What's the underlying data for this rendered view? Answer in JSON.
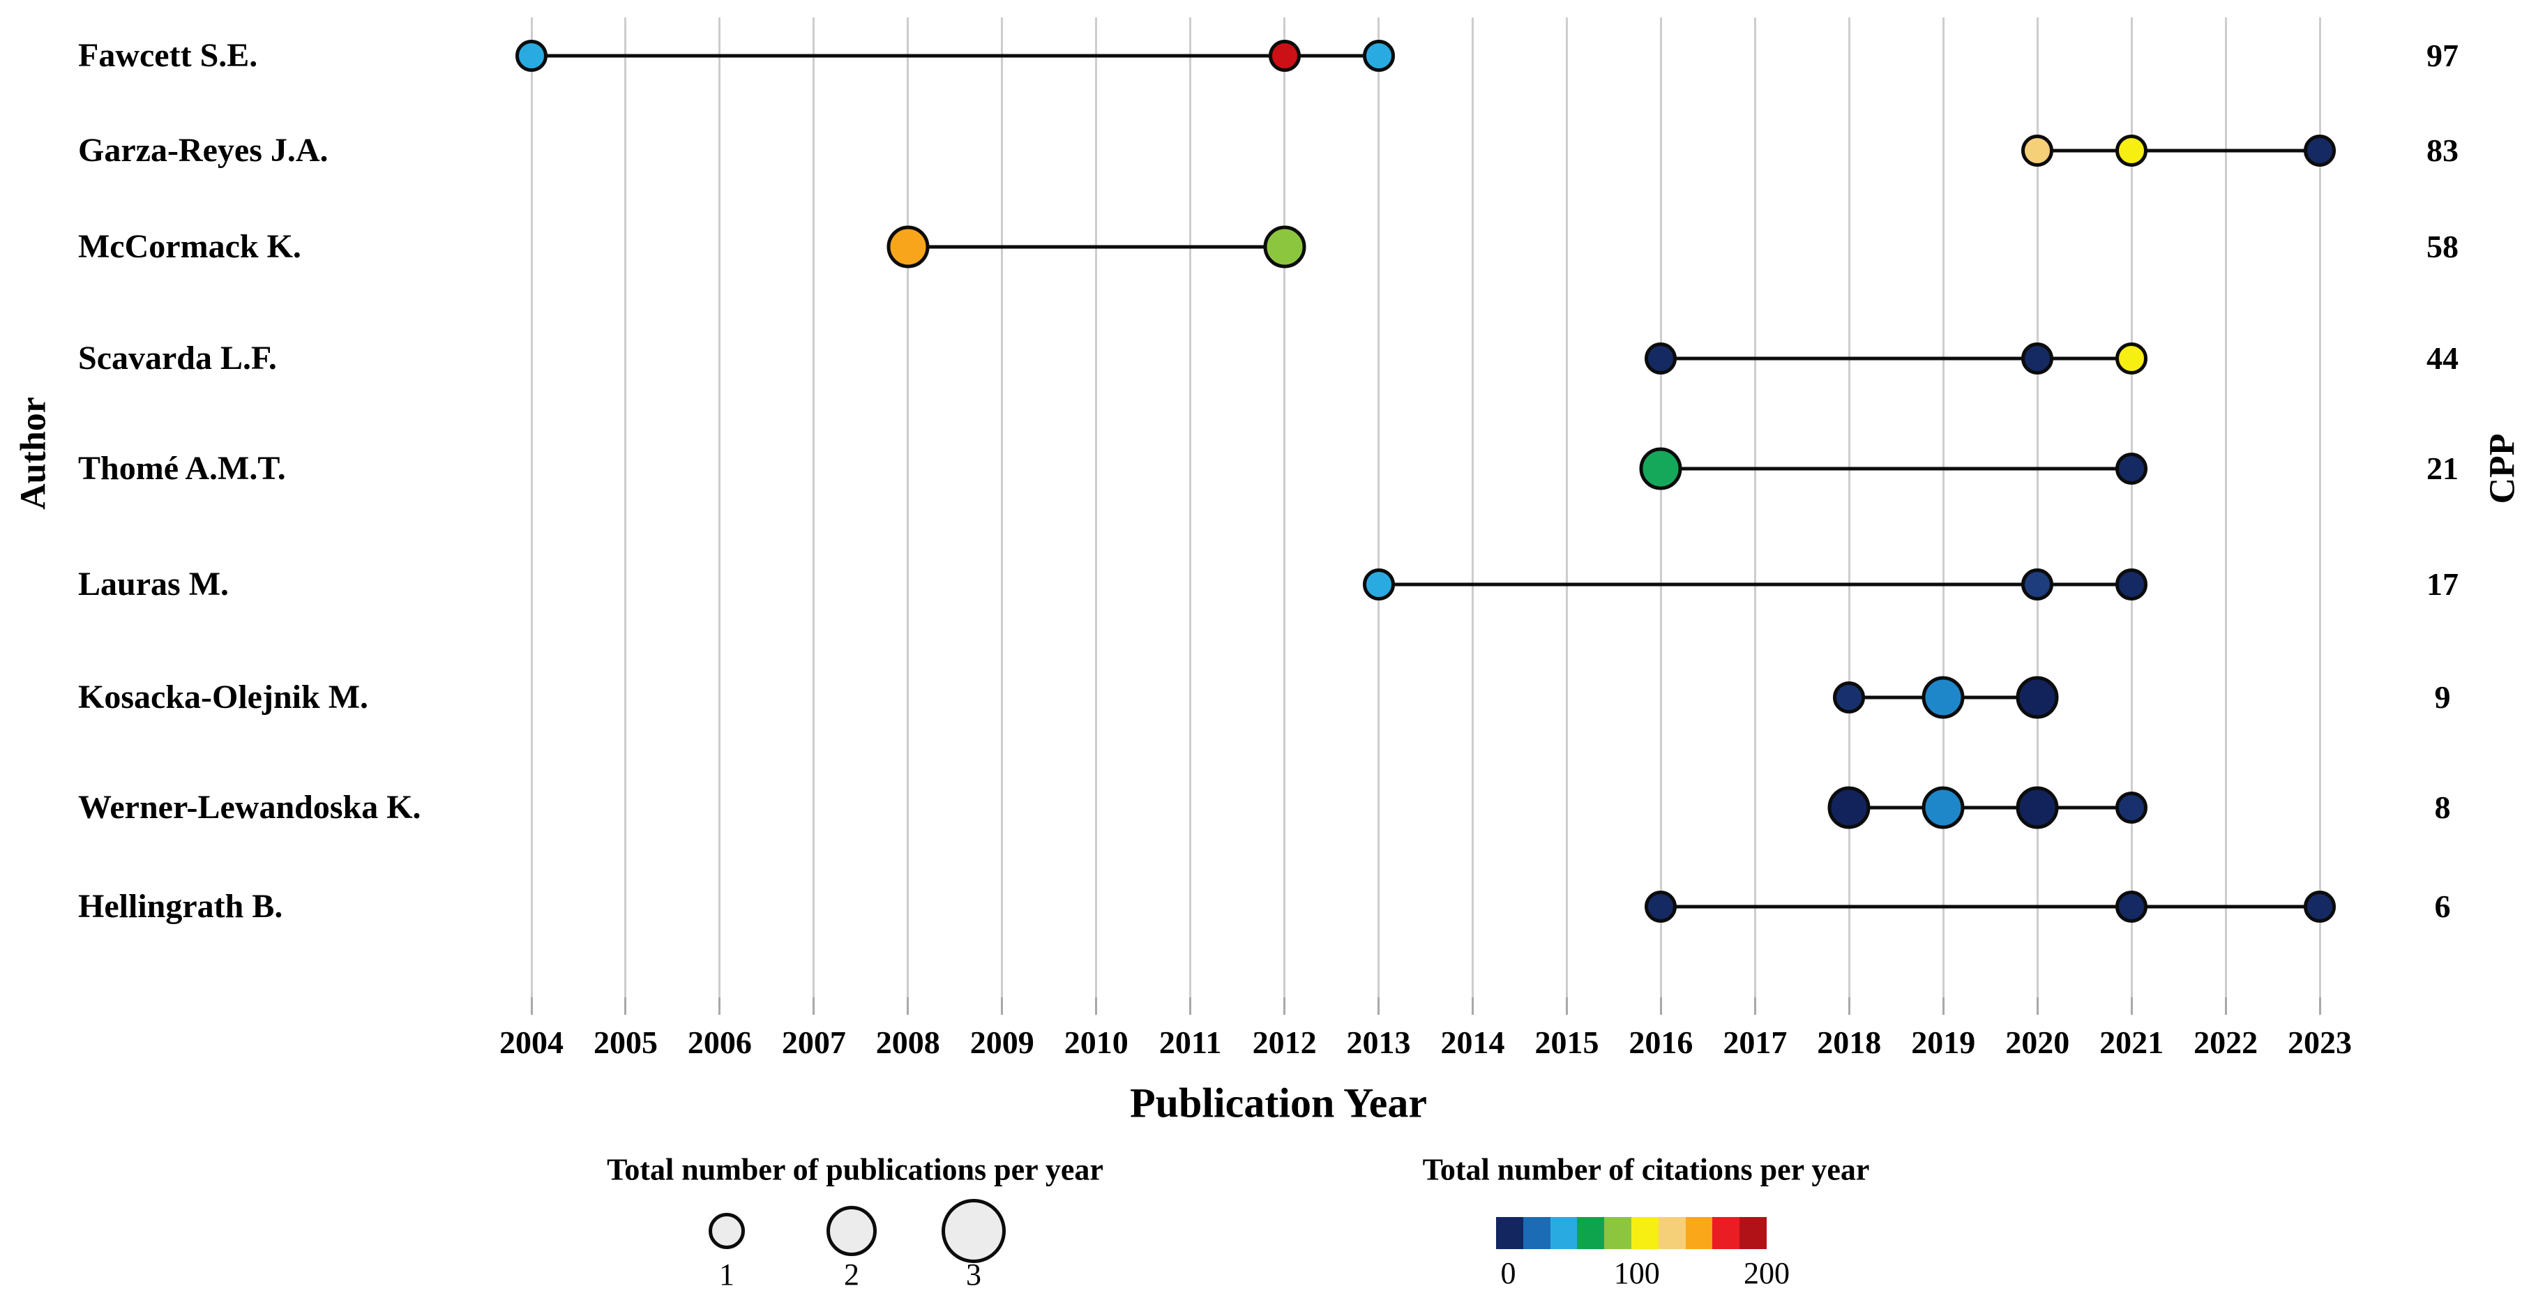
{
  "axes": {
    "x_title": "Publication Year",
    "y_left_title": "Author",
    "y_right_title": "CPP",
    "years": [
      "2004",
      "2005",
      "2006",
      "2007",
      "2008",
      "2009",
      "2010",
      "2011",
      "2012",
      "2013",
      "2014",
      "2015",
      "2016",
      "2017",
      "2018",
      "2019",
      "2020",
      "2021",
      "2022",
      "2023"
    ]
  },
  "chart_data": {
    "type": "scatter",
    "subtype": "authors-production-over-time-dot-timeline",
    "x_range": [
      2004,
      2023
    ],
    "grid": true,
    "xlabel": "Publication Year",
    "ylabel_left": "Author",
    "ylabel_right": "CPP",
    "rows": [
      {
        "author": "Fawcett S.E.",
        "cpp": 97,
        "points": [
          {
            "year": 2004,
            "publications": 1,
            "citations_color": "#29abe2"
          },
          {
            "year": 2012,
            "publications": 1,
            "citations_color": "#cb1016"
          },
          {
            "year": 2013,
            "publications": 1,
            "citations_color": "#29abe2"
          }
        ]
      },
      {
        "author": "Garza-Reyes J.A.",
        "cpp": 83,
        "points": [
          {
            "year": 2020,
            "publications": 1,
            "citations_color": "#f6cf79"
          },
          {
            "year": 2021,
            "publications": 1,
            "citations_color": "#f7ee12"
          },
          {
            "year": 2023,
            "publications": 1,
            "citations_color": "#152a63"
          }
        ]
      },
      {
        "author": "McCormack K.",
        "cpp": 58,
        "points": [
          {
            "year": 2008,
            "publications": 2,
            "citations_color": "#f9a51b"
          },
          {
            "year": 2012,
            "publications": 2,
            "citations_color": "#8cc63f"
          }
        ]
      },
      {
        "author": "Scavarda L.F.",
        "cpp": 44,
        "points": [
          {
            "year": 2016,
            "publications": 1,
            "citations_color": "#152a63"
          },
          {
            "year": 2020,
            "publications": 1,
            "citations_color": "#152a63"
          },
          {
            "year": 2021,
            "publications": 1,
            "citations_color": "#f7ee12"
          }
        ]
      },
      {
        "author": "Thomé A.M.T.",
        "cpp": 21,
        "points": [
          {
            "year": 2016,
            "publications": 2,
            "citations_color": "#16a85a"
          },
          {
            "year": 2021,
            "publications": 1,
            "citations_color": "#152a63"
          }
        ]
      },
      {
        "author": "Lauras M.",
        "cpp": 17,
        "points": [
          {
            "year": 2013,
            "publications": 1,
            "citations_color": "#29abe2"
          },
          {
            "year": 2020,
            "publications": 1,
            "citations_color": "#1d3d7d"
          },
          {
            "year": 2021,
            "publications": 1,
            "citations_color": "#152a63"
          }
        ]
      },
      {
        "author": "Kosacka-Olejnik M.",
        "cpp": 9,
        "points": [
          {
            "year": 2018,
            "publications": 1,
            "citations_color": "#18316e"
          },
          {
            "year": 2019,
            "publications": 2,
            "citations_color": "#1e87c9"
          },
          {
            "year": 2020,
            "publications": 2,
            "citations_color": "#11235a"
          }
        ]
      },
      {
        "author": "Werner-Lewandoska K.",
        "cpp": 8,
        "points": [
          {
            "year": 2018,
            "publications": 2,
            "citations_color": "#11235a"
          },
          {
            "year": 2019,
            "publications": 2,
            "citations_color": "#1e87c9"
          },
          {
            "year": 2020,
            "publications": 2,
            "citations_color": "#11235a"
          },
          {
            "year": 2021,
            "publications": 1,
            "citations_color": "#18316e"
          }
        ]
      },
      {
        "author": "Hellingrath B.",
        "cpp": 6,
        "points": [
          {
            "year": 2016,
            "publications": 1,
            "citations_color": "#152a63"
          },
          {
            "year": 2021,
            "publications": 1,
            "citations_color": "#152a63"
          },
          {
            "year": 2023,
            "publications": 1,
            "citations_color": "#152a63"
          }
        ]
      }
    ]
  },
  "legends": {
    "size": {
      "title": "Total number of publications per year",
      "items": [
        {
          "label": "1",
          "publications": 1
        },
        {
          "label": "2",
          "publications": 2
        },
        {
          "label": "3",
          "publications": 3
        }
      ]
    },
    "color": {
      "title": "Total number of citations per year",
      "tick_labels": [
        "0",
        "100",
        "200"
      ],
      "swatches": [
        "#13265f",
        "#1b6cb5",
        "#29abe2",
        "#0ea44e",
        "#8cc63f",
        "#f7ee12",
        "#f6cf79",
        "#faa719",
        "#ea1c24",
        "#b11218"
      ]
    }
  }
}
